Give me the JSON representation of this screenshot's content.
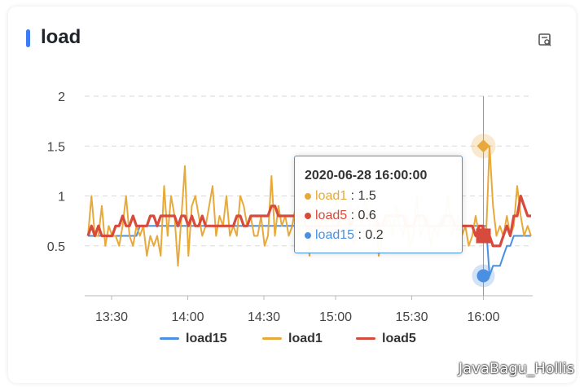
{
  "header": {
    "title": "load"
  },
  "chart_data": {
    "type": "line",
    "ylim": [
      0,
      2
    ],
    "yticks": [
      "0.5",
      "1",
      "1.5",
      "2"
    ],
    "xticks": [
      "13:30",
      "14:00",
      "14:30",
      "15:00",
      "15:30",
      "16:00"
    ],
    "grid": true,
    "legend_position": "bottom",
    "series": [
      {
        "name": "load15",
        "color": "#4a90e2",
        "values": [
          0.6,
          0.6,
          0.6,
          0.6,
          0.6,
          0.6,
          0.6,
          0.6,
          0.6,
          0.6,
          0.6,
          0.6,
          0.6,
          0.6,
          0.6,
          0.7,
          0.7,
          0.7,
          0.7,
          0.7,
          0.7,
          0.7,
          0.7,
          0.7,
          0.7,
          0.7,
          0.7,
          0.7,
          0.7,
          0.7,
          0.7,
          0.7,
          0.7,
          0.7,
          0.7,
          0.7,
          0.7,
          0.7,
          0.7,
          0.7,
          0.7,
          0.7,
          0.7,
          0.7,
          0.7,
          0.7,
          0.7,
          0.7,
          0.7,
          0.7,
          0.7,
          0.7,
          0.7,
          0.7,
          0.7,
          0.7,
          0.7,
          0.7,
          0.7,
          0.7,
          0.7,
          0.7,
          0.7,
          0.7,
          0.7,
          0.7,
          0.7,
          0.7,
          0.7,
          0.7,
          0.7,
          0.7,
          0.7,
          0.7,
          0.7,
          0.7,
          0.7,
          0.7,
          0.7,
          0.7,
          0.7,
          0.7,
          0.7,
          0.7,
          0.7,
          0.7,
          0.7,
          0.7,
          0.7,
          0.7,
          0.7,
          0.7,
          0.7,
          0.7,
          0.7,
          0.7,
          0.7,
          0.7,
          0.7,
          0.7,
          0.7,
          0.7,
          0.7,
          0.7,
          0.7,
          0.7,
          0.7,
          0.7,
          0.7,
          0.7,
          0.7,
          0.7,
          0.7,
          0.7,
          0.7,
          0.7,
          0.2,
          0.3,
          0.3,
          0.3,
          0.4,
          0.5,
          0.5,
          0.6,
          0.6,
          0.6,
          0.6,
          0.6,
          0.6
        ]
      },
      {
        "name": "load1",
        "color": "#e8a93b",
        "values": [
          0.6,
          1.0,
          0.6,
          0.6,
          0.9,
          0.5,
          0.7,
          0.6,
          0.6,
          0.5,
          0.7,
          1.0,
          0.6,
          0.5,
          0.7,
          0.6,
          0.7,
          0.4,
          0.6,
          0.5,
          0.6,
          0.4,
          1.1,
          0.6,
          1.0,
          0.8,
          0.3,
          0.8,
          1.3,
          0.4,
          0.9,
          1.0,
          0.8,
          0.6,
          0.7,
          0.9,
          1.1,
          0.6,
          0.8,
          0.7,
          1.0,
          0.6,
          0.7,
          0.6,
          1.0,
          0.9,
          0.7,
          0.8,
          0.6,
          0.6,
          0.8,
          0.5,
          0.6,
          1.2,
          0.6,
          0.9,
          0.7,
          0.8,
          0.6,
          0.7,
          0.9,
          0.6,
          0.8,
          0.7,
          0.4,
          0.9,
          0.6,
          0.7,
          0.8,
          0.7,
          0.5,
          0.8,
          1.0,
          0.6,
          0.7,
          0.8,
          0.6,
          0.5,
          0.9,
          0.7,
          1.0,
          0.8,
          0.6,
          0.8,
          0.4,
          0.6,
          0.7,
          0.8,
          0.6,
          0.9,
          0.7,
          0.6,
          0.8,
          0.5,
          0.6,
          1.0,
          0.6,
          0.7,
          0.8,
          0.5,
          0.7,
          0.6,
          0.8,
          0.7,
          1.0,
          0.6,
          0.7,
          0.8,
          0.6,
          0.7,
          0.5,
          0.6,
          0.8,
          0.6,
          0.7,
          0.6,
          1.5,
          0.9,
          0.6,
          0.7,
          0.6,
          0.8,
          0.6,
          0.7,
          1.1,
          0.8,
          0.6,
          0.7,
          0.6
        ]
      },
      {
        "name": "load5",
        "color": "#d74a3c",
        "values": [
          0.6,
          0.7,
          0.6,
          0.7,
          0.6,
          0.6,
          0.6,
          0.6,
          0.7,
          0.7,
          0.8,
          0.7,
          0.7,
          0.8,
          0.7,
          0.7,
          0.7,
          0.7,
          0.8,
          0.8,
          0.7,
          0.8,
          0.8,
          0.8,
          0.8,
          0.8,
          0.7,
          0.8,
          0.8,
          0.7,
          0.8,
          0.7,
          0.7,
          0.8,
          0.7,
          0.7,
          0.7,
          0.7,
          0.7,
          0.7,
          0.7,
          0.7,
          0.7,
          0.8,
          0.8,
          0.7,
          0.7,
          0.8,
          0.8,
          0.8,
          0.8,
          0.8,
          0.8,
          0.9,
          0.9,
          0.8,
          0.8,
          0.8,
          0.8,
          0.8,
          0.8,
          0.8,
          0.8,
          0.7,
          0.7,
          0.7,
          0.7,
          0.7,
          0.7,
          0.7,
          0.7,
          0.7,
          0.7,
          0.8,
          0.8,
          0.8,
          0.7,
          0.8,
          0.8,
          0.8,
          0.8,
          0.8,
          0.8,
          0.8,
          0.7,
          0.7,
          0.8,
          0.8,
          0.8,
          0.8,
          0.8,
          0.8,
          0.7,
          0.7,
          0.7,
          0.8,
          0.8,
          0.8,
          0.7,
          0.7,
          0.7,
          0.7,
          0.7,
          0.8,
          0.8,
          0.8,
          0.7,
          0.7,
          0.7,
          0.7,
          0.7,
          0.7,
          0.6,
          0.7,
          0.7,
          0.6,
          0.6,
          0.5,
          0.5,
          0.5,
          0.6,
          0.7,
          0.6,
          0.8,
          0.8,
          1.0,
          0.9,
          0.8,
          0.8
        ]
      }
    ]
  },
  "tooltip": {
    "date": "2020-06-28 16:00:00",
    "rows": [
      {
        "name": "load1",
        "value": "1.5",
        "color": "#e8a93b"
      },
      {
        "name": "load5",
        "value": "0.6",
        "color": "#d74a3c"
      },
      {
        "name": "load15",
        "value": "0.2",
        "color": "#4a90e2"
      }
    ]
  },
  "legend": [
    {
      "name": "load15",
      "color": "#4a90e2"
    },
    {
      "name": "load1",
      "color": "#e8a93b"
    },
    {
      "name": "load5",
      "color": "#d74a3c"
    }
  ],
  "watermark": "JavaBagu_Hollis",
  "icons": {
    "export": "export-data-icon"
  }
}
